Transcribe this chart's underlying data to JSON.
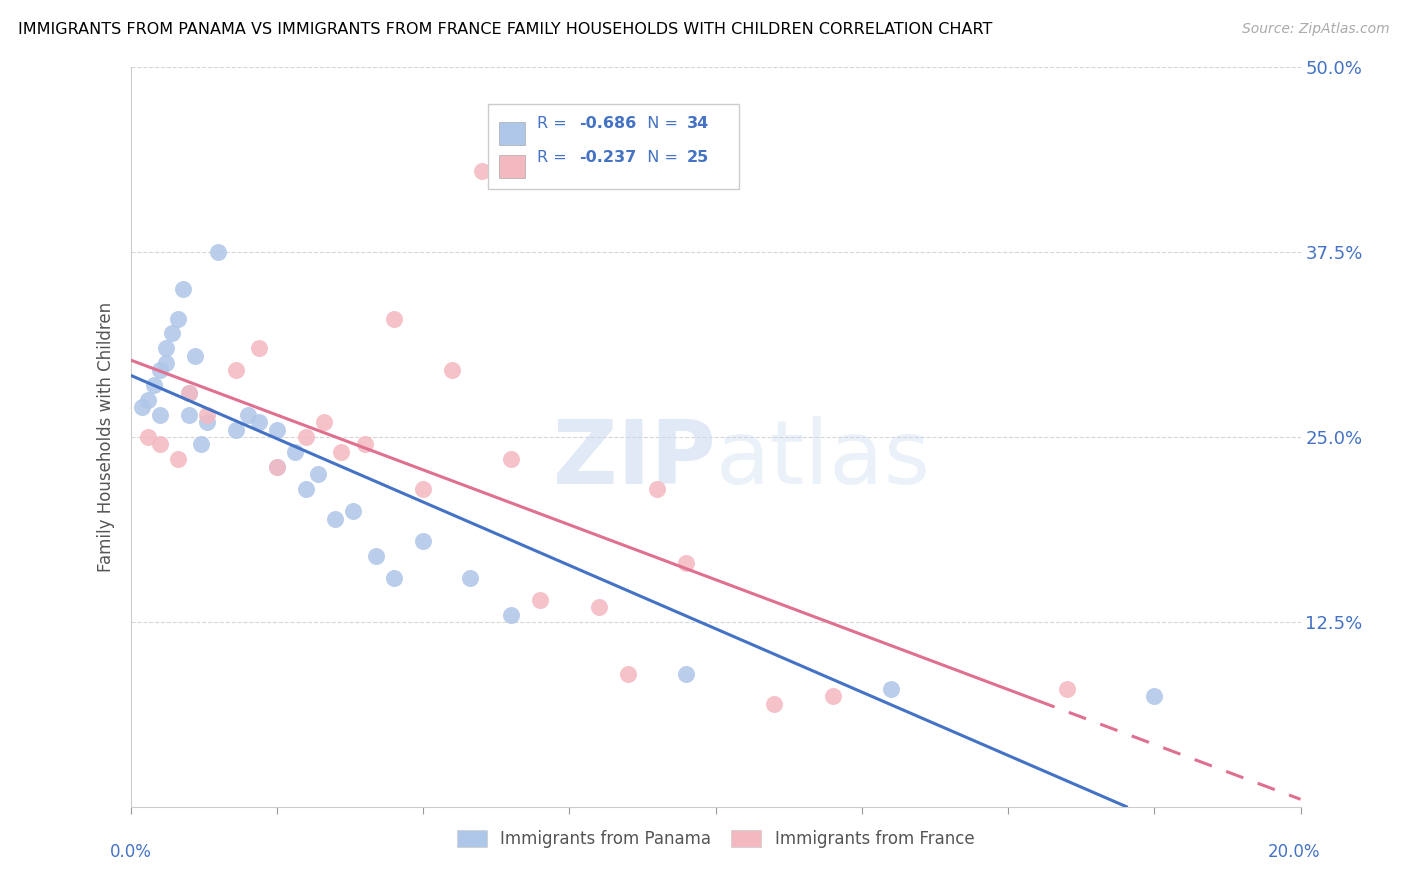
{
  "title": "IMMIGRANTS FROM PANAMA VS IMMIGRANTS FROM FRANCE FAMILY HOUSEHOLDS WITH CHILDREN CORRELATION CHART",
  "source": "Source: ZipAtlas.com",
  "ylabel": "Family Households with Children",
  "xlim": [
    0.0,
    0.2
  ],
  "ylim": [
    0.0,
    0.5
  ],
  "panama_R": "-0.686",
  "panama_N": "34",
  "france_R": "-0.237",
  "france_N": "25",
  "panama_color": "#aec6e8",
  "france_color": "#f4b8c1",
  "panama_line_color": "#4472c4",
  "france_line_color": "#e07090",
  "legend_text_color": "#4472c4",
  "panama_points_x": [
    0.002,
    0.003,
    0.004,
    0.005,
    0.005,
    0.006,
    0.006,
    0.007,
    0.008,
    0.009,
    0.01,
    0.01,
    0.011,
    0.012,
    0.013,
    0.015,
    0.018,
    0.02,
    0.022,
    0.025,
    0.025,
    0.028,
    0.03,
    0.032,
    0.035,
    0.038,
    0.042,
    0.045,
    0.05,
    0.058,
    0.065,
    0.095,
    0.13,
    0.175
  ],
  "panama_points_y": [
    0.27,
    0.275,
    0.285,
    0.295,
    0.265,
    0.3,
    0.31,
    0.32,
    0.33,
    0.35,
    0.28,
    0.265,
    0.305,
    0.245,
    0.26,
    0.375,
    0.255,
    0.265,
    0.26,
    0.255,
    0.23,
    0.24,
    0.215,
    0.225,
    0.195,
    0.2,
    0.17,
    0.155,
    0.18,
    0.155,
    0.13,
    0.09,
    0.08,
    0.075
  ],
  "france_points_x": [
    0.003,
    0.005,
    0.008,
    0.01,
    0.013,
    0.018,
    0.022,
    0.025,
    0.03,
    0.033,
    0.036,
    0.04,
    0.045,
    0.05,
    0.055,
    0.06,
    0.065,
    0.07,
    0.08,
    0.085,
    0.09,
    0.095,
    0.11,
    0.12,
    0.16
  ],
  "france_points_y": [
    0.25,
    0.245,
    0.235,
    0.28,
    0.265,
    0.295,
    0.31,
    0.23,
    0.25,
    0.26,
    0.24,
    0.245,
    0.33,
    0.215,
    0.295,
    0.43,
    0.235,
    0.14,
    0.135,
    0.09,
    0.215,
    0.165,
    0.07,
    0.075,
    0.08
  ],
  "watermark_zip": "ZIP",
  "watermark_atlas": "atlas",
  "legend_items": [
    {
      "label": "Immigrants from Panama",
      "color": "#aec6e8"
    },
    {
      "label": "Immigrants from France",
      "color": "#f4b8c1"
    }
  ]
}
